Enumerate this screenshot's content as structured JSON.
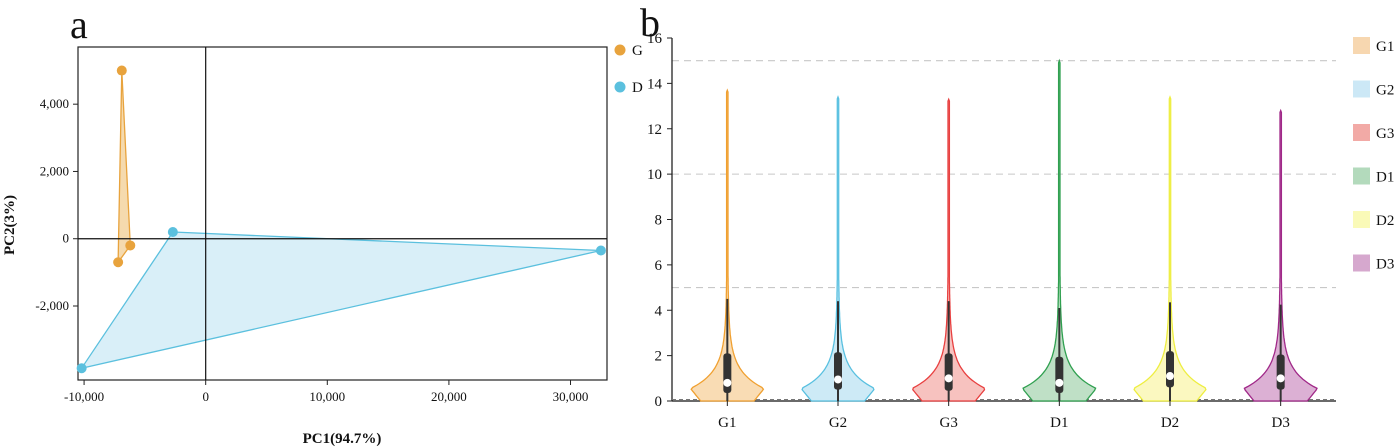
{
  "chart_data": [
    {
      "panel_label": "a",
      "type": "scatter",
      "xlabel": "PC1(94.7%)",
      "ylabel": "PC2(3%)",
      "xlim": [
        -10500,
        33000
      ],
      "ylim": [
        -4200,
        5700
      ],
      "xticks": [
        -10000,
        0,
        10000,
        20000,
        30000
      ],
      "xtick_labels": [
        "-10,000",
        "0",
        "10,000",
        "20,000",
        "30,000"
      ],
      "yticks": [
        -2000,
        0,
        2000,
        4000
      ],
      "ytick_labels": [
        "-2,000",
        "0",
        "2,000",
        "4,000"
      ],
      "zero_lines": true,
      "legend_position": "top-right-outside",
      "series": [
        {
          "name": "G",
          "color": "#e8a33d",
          "fill": "#f3d3a0",
          "points": [
            [
              -6900,
              5000
            ],
            [
              -6200,
              -200
            ],
            [
              -7200,
              -700
            ]
          ]
        },
        {
          "name": "D",
          "color": "#5bc0de",
          "fill": "#d2ecf7",
          "points": [
            [
              -2700,
              200
            ],
            [
              32500,
              -350
            ],
            [
              -10200,
              -3850
            ]
          ]
        }
      ]
    },
    {
      "panel_label": "b",
      "type": "violin",
      "ylim": [
        0,
        16
      ],
      "yticks": [
        0,
        2,
        4,
        6,
        8,
        10,
        12,
        14,
        16
      ],
      "ytick_labels": [
        "0",
        "2",
        "4",
        "6",
        "8",
        "10",
        "12",
        "14",
        "16"
      ],
      "reference_lines": [
        5,
        10,
        15
      ],
      "legend_position": "right",
      "series": [
        {
          "name": "G1",
          "color": "#f0a030",
          "fill": "#f9dcb4",
          "legend_fill": "#f7d7b0",
          "max": 13.7,
          "median": 0.8,
          "q1": 0.35,
          "q3": 2.1,
          "whisker_high": 4.5
        },
        {
          "name": "G2",
          "color": "#58c0e0",
          "fill": "#cdeaf6",
          "legend_fill": "#cce8f6",
          "max": 13.4,
          "median": 0.95,
          "q1": 0.5,
          "q3": 2.15,
          "whisker_high": 4.4
        },
        {
          "name": "G3",
          "color": "#e84040",
          "fill": "#f7c2bf",
          "legend_fill": "#f2aaa6",
          "max": 13.3,
          "median": 1.0,
          "q1": 0.45,
          "q3": 2.1,
          "whisker_high": 4.4
        },
        {
          "name": "D1",
          "color": "#30a050",
          "fill": "#bfe0c6",
          "legend_fill": "#b3dabc",
          "max": 15.0,
          "median": 0.8,
          "q1": 0.35,
          "q3": 1.95,
          "whisker_high": 4.1
        },
        {
          "name": "D2",
          "color": "#eeee40",
          "fill": "#fbf8c0",
          "legend_fill": "#fafab8",
          "max": 13.4,
          "median": 1.1,
          "q1": 0.6,
          "q3": 2.2,
          "whisker_high": 4.35
        },
        {
          "name": "D3",
          "color": "#a02888",
          "fill": "#dcb0d4",
          "legend_fill": "#d6a8ce",
          "max": 12.8,
          "median": 1.0,
          "q1": 0.5,
          "q3": 2.05,
          "whisker_high": 4.25
        }
      ]
    }
  ]
}
